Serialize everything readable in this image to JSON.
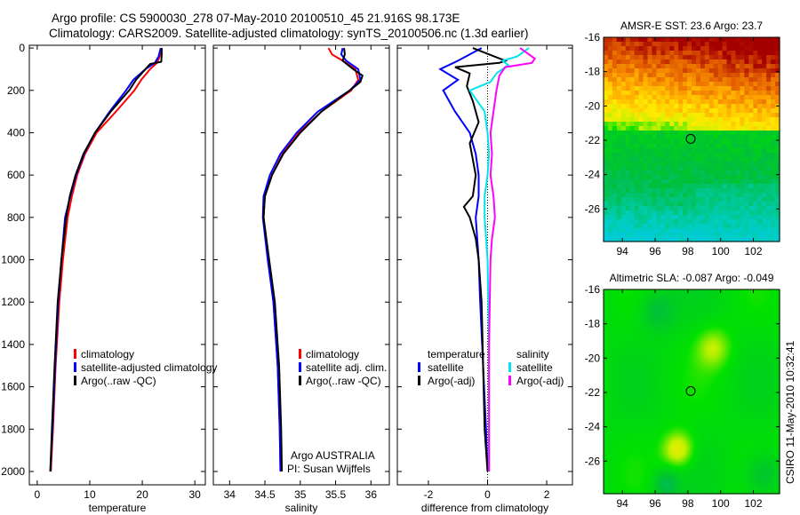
{
  "title": {
    "line1": "Argo profile: CS 5900030_278 07-May-2010 20100510_45 21.916S 98.173E",
    "line2": "Climatology: CARS2009. Satellite-adjusted climatology: synTS_20100506.nc (1.3d earlier)"
  },
  "side_label": "CSIRO 11-May-2010 10:32:41",
  "colors": {
    "climatology": "#ff0000",
    "satellite": "#0000ff",
    "argo": "#000000",
    "sal_satellite": "#00e5ee",
    "sal_argo": "#ff00ff"
  },
  "chart_data": [
    {
      "id": "temperature",
      "type": "line",
      "xlabel": "temperature",
      "ylabel": "depth",
      "xlim": [
        -1.5,
        32
      ],
      "ylim": [
        2063,
        -13
      ],
      "xticks": [
        0,
        10,
        20,
        30
      ],
      "yticks": [
        0,
        200,
        400,
        600,
        800,
        1000,
        1200,
        1400,
        1600,
        1800,
        2000
      ],
      "legend": [
        "climatology",
        "satellite-adjusted climatology",
        "Argo(..raw -QC)"
      ],
      "series": [
        {
          "name": "climatology",
          "color": "#ff0000",
          "depth": [
            0,
            40,
            70,
            100,
            150,
            200,
            300,
            400,
            500,
            600,
            700,
            800,
            1000,
            1200,
            1500,
            1800,
            2000
          ],
          "values": [
            23.6,
            23.3,
            22.8,
            21.5,
            19.8,
            18.5,
            15,
            11.3,
            9.1,
            7.6,
            6.6,
            5.8,
            4.9,
            4.2,
            3.5,
            3.0,
            2.6
          ]
        },
        {
          "name": "satellite-adjusted climatology",
          "color": "#0000ff",
          "depth": [
            0,
            40,
            70,
            100,
            150,
            200,
            300,
            400,
            500,
            600,
            700,
            800,
            1000,
            1200,
            1500,
            1800,
            2000
          ],
          "values": [
            23.5,
            23.1,
            22.4,
            20.6,
            18.3,
            16.9,
            13.8,
            11,
            8.9,
            7.4,
            6.3,
            5.3,
            4.6,
            4.0,
            3.4,
            2.9,
            2.5
          ]
        },
        {
          "name": "Argo(..raw -QC)",
          "color": "#000000",
          "depth": [
            0,
            30,
            65,
            75,
            100,
            150,
            200,
            300,
            400,
            500,
            600,
            700,
            800,
            1000,
            1200,
            1500,
            1800,
            2000
          ],
          "values": [
            23.7,
            23.7,
            23.6,
            21.5,
            20.6,
            18.8,
            17.5,
            14,
            11,
            8.8,
            7.3,
            6.2,
            5.5,
            4.6,
            3.9,
            3.3,
            2.8,
            2.5
          ]
        }
      ]
    },
    {
      "id": "salinity",
      "type": "line",
      "xlabel": "salinity",
      "ylabel": "depth",
      "xlim": [
        33.77,
        36.26
      ],
      "ylim": [
        2063,
        -13
      ],
      "xticks": [
        34,
        34.5,
        35,
        35.5,
        36
      ],
      "xticklabels": [
        "34",
        "34.5",
        "35",
        "35.5",
        "36"
      ],
      "legend": [
        "climatology",
        "satellite adj. clim.",
        "Argo(..raw -QC)"
      ],
      "annotations": [
        "Argo AUSTRALIA",
        "PI: Susan Wijffels"
      ],
      "series": [
        {
          "name": "climatology",
          "color": "#ff0000",
          "depth": [
            0,
            30,
            60,
            100,
            150,
            200,
            300,
            400,
            500,
            600,
            700,
            800,
            1000,
            1200,
            1500,
            1800,
            2000
          ],
          "values": [
            35.4,
            35.45,
            35.6,
            35.78,
            35.82,
            35.72,
            35.3,
            34.98,
            34.75,
            34.6,
            34.5,
            34.48,
            34.55,
            34.62,
            34.68,
            34.71,
            34.72
          ]
        },
        {
          "name": "satellite adj. clim.",
          "color": "#0000ff",
          "depth": [
            0,
            30,
            60,
            100,
            150,
            200,
            300,
            400,
            500,
            600,
            700,
            800,
            1000,
            1200,
            1500,
            1800,
            2000
          ],
          "values": [
            35.6,
            35.58,
            35.65,
            35.82,
            35.85,
            35.7,
            35.25,
            34.95,
            34.72,
            34.57,
            34.48,
            34.47,
            34.54,
            34.62,
            34.68,
            34.71,
            34.72
          ]
        },
        {
          "name": "Argo(..raw -QC)",
          "color": "#000000",
          "depth": [
            0,
            30,
            60,
            100,
            130,
            160,
            200,
            300,
            400,
            500,
            600,
            700,
            800,
            1000,
            1200,
            1500,
            1800,
            2000
          ],
          "values": [
            35.62,
            35.63,
            35.6,
            35.75,
            35.88,
            35.85,
            35.7,
            35.3,
            35.0,
            34.76,
            34.6,
            34.5,
            34.48,
            34.56,
            34.64,
            34.7,
            34.73,
            34.74
          ]
        }
      ]
    },
    {
      "id": "difference",
      "type": "line",
      "xlabel": "difference from climatology",
      "ylabel": "depth",
      "xlim": [
        -3.05,
        2.87
      ],
      "ylim": [
        2063,
        -13
      ],
      "xticks": [
        -2,
        0,
        2
      ],
      "legend_temperature": {
        "title": "temperature",
        "items": [
          "satellite",
          "Argo(-adj)"
        ]
      },
      "legend_salinity": {
        "title": "salinity",
        "items": [
          "satellite",
          "Argo(-adj)"
        ]
      },
      "series": [
        {
          "name": "temperature satellite",
          "color": "#0000ff",
          "depth": [
            0,
            60,
            100,
            150,
            200,
            300,
            400,
            500,
            600,
            700,
            800,
            1000,
            1200,
            1500,
            1800,
            2000
          ],
          "values": [
            -0.2,
            -1,
            -1.6,
            -1,
            -1.5,
            -1.1,
            -0.6,
            -0.4,
            -0.3,
            -0.3,
            -0.4,
            -0.3,
            -0.25,
            -0.15,
            -0.05,
            0
          ]
        },
        {
          "name": "temperature Argo(-adj)",
          "color": "#000000",
          "depth": [
            0,
            60,
            70,
            90,
            120,
            180,
            250,
            350,
            450,
            600,
            700,
            750,
            800,
            900,
            1000,
            1200,
            1500,
            1800,
            2000
          ],
          "values": [
            -0.5,
            0.6,
            0.4,
            -1.1,
            -0.6,
            -0.7,
            -0.5,
            -0.3,
            -0.6,
            -0.4,
            -0.5,
            -0.8,
            -0.6,
            -0.4,
            -0.3,
            -0.2,
            -0.15,
            -0.1,
            0
          ]
        },
        {
          "name": "salinity satellite",
          "color": "#00e5ee",
          "depth": [
            0,
            40,
            60,
            80,
            120,
            160,
            200,
            300,
            400,
            500,
            600,
            700,
            800,
            1000,
            1400,
            2000
          ],
          "values": [
            1.4,
            1.0,
            0.5,
            0.7,
            0.3,
            0.1,
            -0.6,
            -0.1,
            0,
            0.05,
            0,
            -0.1,
            -0.1,
            0,
            0.05,
            0.05
          ]
        },
        {
          "name": "salinity Argo(-adj)",
          "color": "#ff00ff",
          "depth": [
            0,
            50,
            70,
            90,
            130,
            200,
            300,
            400,
            500,
            600,
            700,
            800,
            900,
            1000,
            1400,
            2000
          ],
          "values": [
            1.1,
            1.6,
            1.5,
            0.6,
            0.4,
            0.3,
            0.2,
            0.1,
            0.15,
            0.1,
            0.2,
            0.25,
            0.15,
            0.1,
            0.05,
            0.05
          ]
        }
      ]
    },
    {
      "id": "sst_map",
      "type": "heatmap",
      "title": "AMSR-E SST: 23.6 Argo: 23.7",
      "xlim": [
        92.85,
        103.6
      ],
      "ylim": [
        -27.9,
        -16
      ],
      "xticks": [
        94,
        96,
        98,
        100,
        102
      ],
      "yticks": [
        -16,
        -18,
        -20,
        -22,
        -24,
        -26
      ],
      "value_range": [
        22.5,
        27.5
      ],
      "marker": {
        "lon": 98.17,
        "lat": -21.92
      }
    },
    {
      "id": "sla_map",
      "type": "heatmap",
      "title": "Altimetric SLA: -0.087 Argo: -0.049",
      "xlim": [
        92.85,
        103.6
      ],
      "ylim": [
        -27.9,
        -16
      ],
      "xticks": [
        94,
        96,
        98,
        100,
        102
      ],
      "yticks": [
        -16,
        -18,
        -20,
        -22,
        -24,
        -26
      ],
      "value_range": [
        -0.3,
        0.3
      ],
      "marker": {
        "lon": 98.17,
        "lat": -21.92
      }
    }
  ]
}
